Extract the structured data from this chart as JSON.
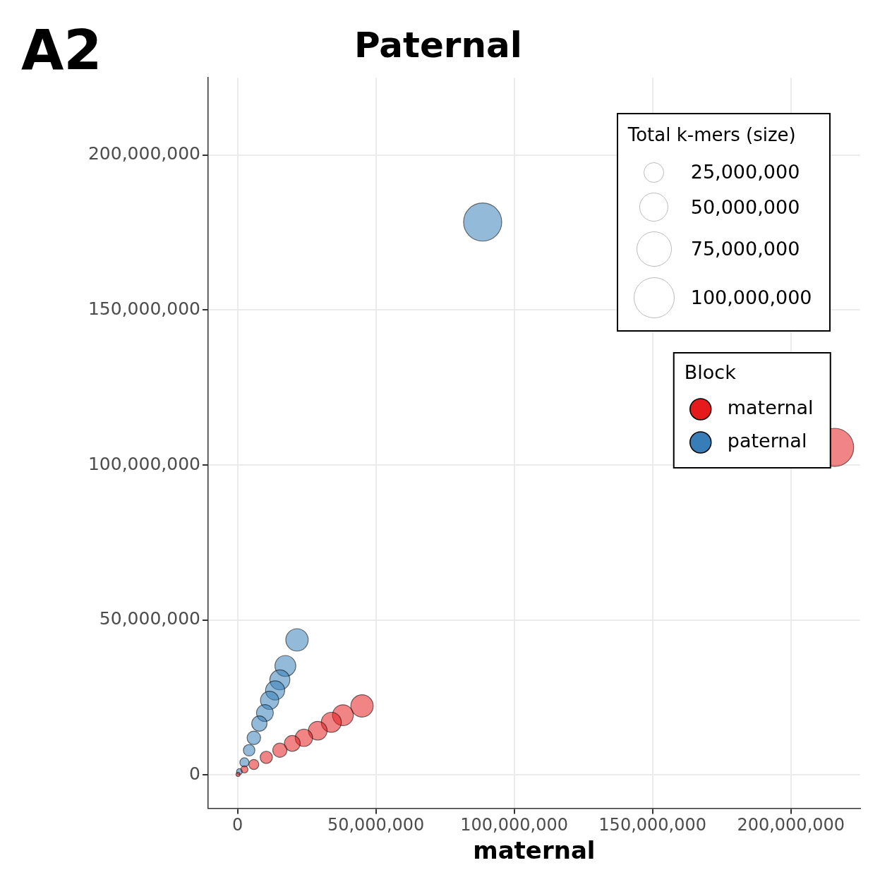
{
  "chart_data": {
    "type": "bubble",
    "title": "Paternal",
    "xlabel": "maternal",
    "legend_title": "Block",
    "annotations": [
      "A2",
      "Total k-mers (size)"
    ],
    "xlim": [
      -10600000,
      225000000
    ],
    "xticks": [
      0,
      {
        "value": 50000000,
        "label": "50,000,000"
      },
      {
        "value": 100000000,
        "label": "100,000,000"
      },
      {
        "value": 150000000,
        "label": "150,000,000"
      },
      {
        "value": 200000000,
        "label": "200,000,000"
      }
    ],
    "ylim": [
      -10700000,
      225000000
    ],
    "yticks": [
      0,
      {
        "value": 50000000,
        "label": "50,000,000"
      },
      {
        "value": 100000000,
        "label": "100,000,000"
      },
      {
        "value": 150000000,
        "label": "150,000,000"
      },
      {
        "value": 200000000,
        "label": "200,000,000"
      }
    ],
    "grid": true,
    "legend": "top right",
    "marker": "circle",
    "size_legend": [
      {
        "value": 25000000,
        "label": "25,000,000"
      },
      {
        "value": 50000000,
        "label": "50,000,000"
      },
      {
        "value": 75000000,
        "label": "75,000,000"
      },
      {
        "value": 100000000,
        "label": "100,000,000"
      }
    ],
    "series": [
      {
        "name": "maternal",
        "color": "#e41a1c",
        "x": [
          215800000,
          45000000,
          38100000,
          33900000,
          29000000,
          24000000,
          19800000,
          15300000,
          10400000,
          5900000,
          2500000,
          200000
        ],
        "values": [
          105700000,
          22300000,
          19300000,
          17000000,
          14300000,
          12000000,
          10200000,
          8000000,
          5700000,
          3400000,
          1800000,
          200000
        ],
        "sizes": [
          87000000,
          30000000,
          26000000,
          24000000,
          21000000,
          18000000,
          15000000,
          12000000,
          9000000,
          6000000,
          3000000,
          1000000
        ]
      },
      {
        "name": "paternal",
        "color": "#377eb8",
        "x": [
          88600000,
          21500000,
          17300000,
          15300000,
          13600000,
          11600000,
          9900000,
          7900000,
          5900000,
          4200000,
          2500000,
          700000
        ],
        "values": [
          178400000,
          43600000,
          35200000,
          30700000,
          27300000,
          24100000,
          20000000,
          16600000,
          12000000,
          8000000,
          4100000,
          1100000
        ],
        "sizes": [
          87000000,
          30000000,
          26000000,
          24000000,
          22000000,
          20000000,
          17000000,
          14000000,
          11000000,
          8000000,
          5000000,
          2000000
        ]
      }
    ]
  }
}
